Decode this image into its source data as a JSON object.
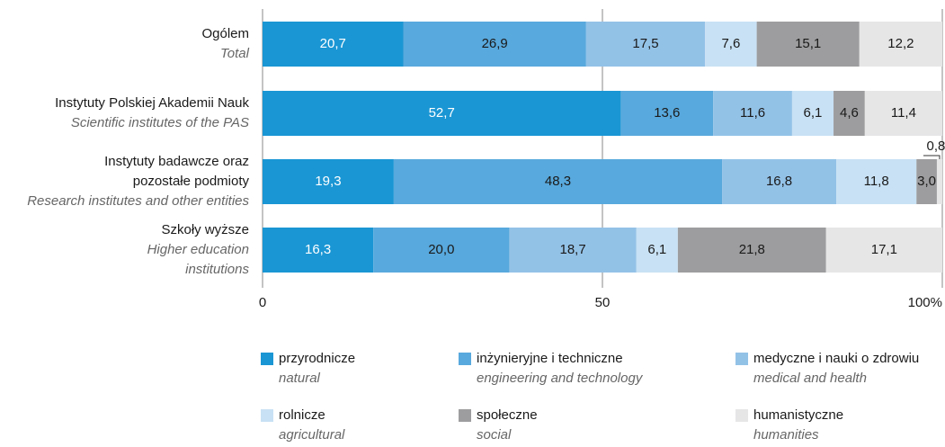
{
  "chart_data": {
    "type": "stacked_barh",
    "categories": [
      [
        "Ogólem"
      ],
      [
        "Instytuty Polskiej Akademii Nauk"
      ],
      [
        "Instytuty badawcze oraz",
        "pozostałe podmioty"
      ],
      [
        "Szkoły wyższe"
      ]
    ],
    "categories_en": [
      [
        "Total"
      ],
      [
        "Scientific institutes of the PAS"
      ],
      [
        "Research institutes and other entities"
      ],
      [
        "Higher education",
        "institutions"
      ]
    ],
    "series": [
      {
        "name": "przyrodnicze",
        "name_en": "natural",
        "color": "#1a96d4",
        "label_color": "#ffffff",
        "values": [
          20.7,
          52.7,
          19.3,
          16.3
        ],
        "value_labels": [
          "20,7",
          "52,7",
          "19,3",
          "16,3"
        ]
      },
      {
        "name": "inżynieryjne i techniczne",
        "name_en": "engineering and technology",
        "color": "#58a9dd",
        "label_color": "#1a1a1a",
        "values": [
          26.9,
          13.6,
          48.3,
          20.0
        ],
        "value_labels": [
          "26,9",
          "13,6",
          "48,3",
          "20,0"
        ]
      },
      {
        "name": "medyczne i nauki o zdrowiu",
        "name_en": "medical and health",
        "color": "#93c2e7",
        "label_color": "#1a1a1a",
        "values": [
          17.5,
          11.6,
          16.8,
          18.7
        ],
        "value_labels": [
          "17,5",
          "11,6",
          "16,8",
          "18,7"
        ]
      },
      {
        "name": "rolnicze",
        "name_en": "agricultural",
        "color": "#c8e1f4",
        "label_color": "#1a1a1a",
        "values": [
          7.6,
          6.1,
          11.8,
          6.1
        ],
        "value_labels": [
          "7,6",
          "6,1",
          "11,8",
          "6,1"
        ]
      },
      {
        "name": "społeczne",
        "name_en": "social",
        "color": "#9d9d9f",
        "label_color": "#1a1a1a",
        "values": [
          15.1,
          4.6,
          3.0,
          21.8
        ],
        "value_labels": [
          "15,1",
          "4,6",
          "3,0",
          "21,8"
        ]
      },
      {
        "name": "humanistyczne",
        "name_en": "humanities",
        "color": "#e6e6e7",
        "label_color": "#1a1a1a",
        "values": [
          12.2,
          11.4,
          0.8,
          17.1
        ],
        "value_labels": [
          "12,2",
          "11,4",
          "0,8",
          "17,1"
        ]
      }
    ],
    "xlim": [
      0,
      100
    ],
    "xticks": [
      0,
      50,
      {
        "value": 100,
        "label": "100%"
      }
    ],
    "grid": true
  }
}
